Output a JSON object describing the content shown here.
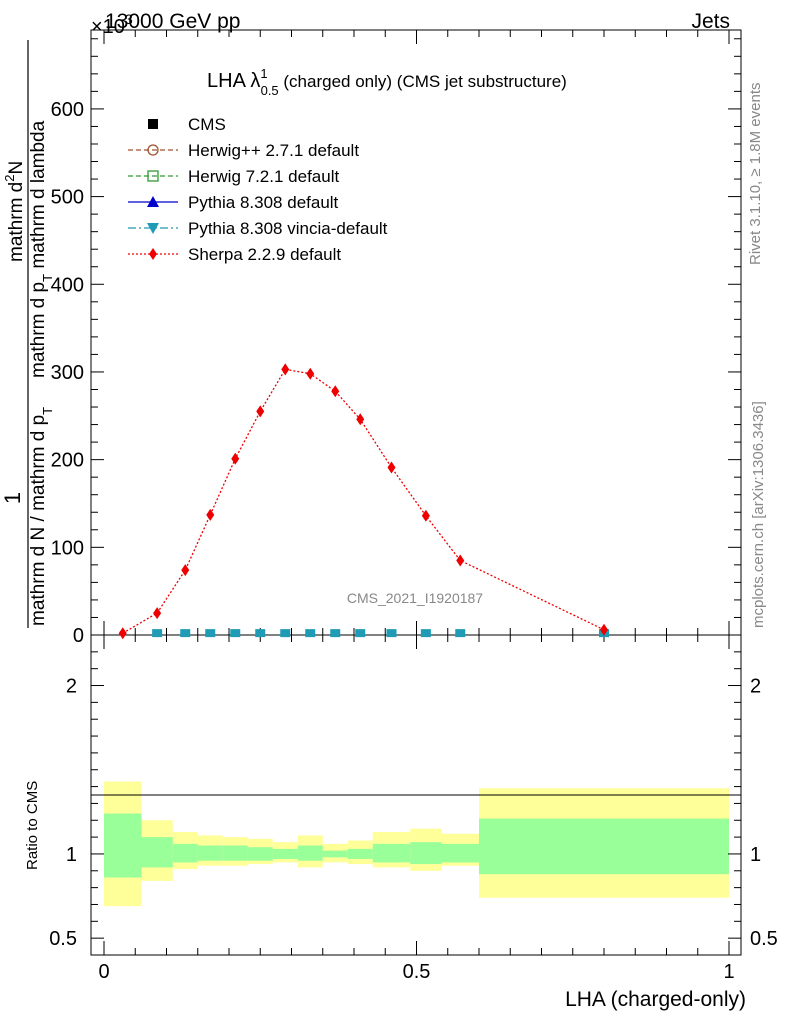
{
  "header": {
    "left": "13000 GeV pp",
    "right": "Jets",
    "exponent_label": "×10",
    "exponent_power": "3"
  },
  "side_labels": {
    "rivet": "Rivet 3.1.10, ≥ 1.8M events",
    "mcplots": "mcplots.cern.ch [arXiv:1306.3436]"
  },
  "watermark": "CMS_2021_I1920187",
  "title": {
    "main": "LHA λ",
    "sup": "1",
    "sub": "0.5",
    "rest": " (charged only) (CMS jet substructure)"
  },
  "y_axis_main": {
    "frac_one": "1",
    "denominator": "mathrm d N / mathrm d p",
    "den_sub": "T",
    "numerator": "mathrm d",
    "num_sup": "2",
    "num_rest": "N",
    "num_line2": "mathrm d p",
    "num_line2_sub": "T",
    "num_line2_rest": " mathrm d lambda"
  },
  "y_axis_ratio": "Ratio to CMS",
  "x_axis_label": "LHA (charged-only)",
  "legend": [
    {
      "label": "CMS",
      "color": "#000000",
      "marker": "square-filled",
      "line": "none"
    },
    {
      "label": "Herwig++ 2.7.1 default",
      "color": "#a0522d",
      "marker": "circle-open",
      "line": "dashed"
    },
    {
      "label": "Herwig 7.2.1 default",
      "color": "#339933",
      "marker": "square-open",
      "line": "dashed"
    },
    {
      "label": "Pythia 8.308 default",
      "color": "#0000cc",
      "marker": "triangle-up",
      "line": "solid"
    },
    {
      "label": "Pythia 8.308 vincia-default",
      "color": "#1f9bb5",
      "marker": "triangle-down",
      "line": "dashdot"
    },
    {
      "label": "Sherpa 2.2.9 default",
      "color": "#ee0000",
      "marker": "diamond",
      "line": "dotted"
    }
  ],
  "chart_data": {
    "type": "line",
    "x_label": "LHA (charged-only)",
    "y_label": "1 / (mathrm d N / mathrm d p_T) · mathrm d^2 N / (mathrm d p_T mathrm d lambda)",
    "y_scale_factor": 1000,
    "xlim": [
      0,
      1
    ],
    "ylim_main": [
      0,
      690
    ],
    "ylim_ratio": [
      0.4,
      2.3
    ],
    "y_ticks_main": [
      0,
      100,
      200,
      300,
      400,
      500,
      600
    ],
    "y_ticks_ratio": [
      0.5,
      1,
      2
    ],
    "x_ticks": [
      0,
      0.5,
      1
    ],
    "bin_edges": [
      0,
      0.06,
      0.11,
      0.15,
      0.19,
      0.23,
      0.27,
      0.31,
      0.35,
      0.39,
      0.43,
      0.49,
      0.54,
      0.6,
      1.0
    ],
    "series": [
      {
        "name": "Sherpa 2.2.9 default",
        "x": [
          0.03,
          0.085,
          0.13,
          0.17,
          0.21,
          0.25,
          0.29,
          0.33,
          0.37,
          0.41,
          0.46,
          0.515,
          0.57,
          0.8
        ],
        "y": [
          2,
          25,
          74,
          137,
          201,
          255,
          303,
          298,
          278,
          246,
          191,
          136,
          85,
          6
        ],
        "yerr": [
          1,
          2,
          3,
          4,
          5,
          5,
          6,
          5,
          5,
          4,
          4,
          3,
          3,
          1
        ]
      },
      {
        "name": "Pythia 8.308 vincia-default",
        "x": [
          0.085,
          0.13,
          0.17,
          0.21,
          0.25,
          0.29,
          0.33,
          0.37,
          0.41,
          0.46,
          0.515,
          0.57,
          0.8
        ],
        "y": [
          1,
          1,
          1,
          1,
          1,
          1,
          1,
          1,
          1,
          1,
          1,
          1,
          1
        ]
      }
    ],
    "ratio_band_inner": [
      {
        "x0": 0,
        "x1": 0.06,
        "lo": 0.86,
        "hi": 1.24
      },
      {
        "x0": 0.06,
        "x1": 0.11,
        "lo": 0.92,
        "hi": 1.1
      },
      {
        "x0": 0.11,
        "x1": 0.15,
        "lo": 0.95,
        "hi": 1.06
      },
      {
        "x0": 0.15,
        "x1": 0.19,
        "lo": 0.96,
        "hi": 1.05
      },
      {
        "x0": 0.19,
        "x1": 0.23,
        "lo": 0.96,
        "hi": 1.05
      },
      {
        "x0": 0.23,
        "x1": 0.27,
        "lo": 0.96,
        "hi": 1.04
      },
      {
        "x0": 0.27,
        "x1": 0.31,
        "lo": 0.97,
        "hi": 1.03
      },
      {
        "x0": 0.31,
        "x1": 0.35,
        "lo": 0.96,
        "hi": 1.05
      },
      {
        "x0": 0.35,
        "x1": 0.39,
        "lo": 0.98,
        "hi": 1.02
      },
      {
        "x0": 0.39,
        "x1": 0.43,
        "lo": 0.97,
        "hi": 1.03
      },
      {
        "x0": 0.43,
        "x1": 0.49,
        "lo": 0.95,
        "hi": 1.06
      },
      {
        "x0": 0.49,
        "x1": 0.54,
        "lo": 0.94,
        "hi": 1.07
      },
      {
        "x0": 0.54,
        "x1": 0.6,
        "lo": 0.95,
        "hi": 1.06
      },
      {
        "x0": 0.6,
        "x1": 1.0,
        "lo": 0.88,
        "hi": 1.21
      }
    ],
    "ratio_band_outer": [
      {
        "x0": 0,
        "x1": 0.06,
        "lo": 0.69,
        "hi": 1.43
      },
      {
        "x0": 0.06,
        "x1": 0.11,
        "lo": 0.84,
        "hi": 1.2
      },
      {
        "x0": 0.11,
        "x1": 0.15,
        "lo": 0.91,
        "hi": 1.13
      },
      {
        "x0": 0.15,
        "x1": 0.19,
        "lo": 0.93,
        "hi": 1.11
      },
      {
        "x0": 0.19,
        "x1": 0.23,
        "lo": 0.93,
        "hi": 1.1
      },
      {
        "x0": 0.23,
        "x1": 0.27,
        "lo": 0.94,
        "hi": 1.09
      },
      {
        "x0": 0.27,
        "x1": 0.31,
        "lo": 0.95,
        "hi": 1.07
      },
      {
        "x0": 0.31,
        "x1": 0.35,
        "lo": 0.92,
        "hi": 1.11
      },
      {
        "x0": 0.35,
        "x1": 0.39,
        "lo": 0.95,
        "hi": 1.06
      },
      {
        "x0": 0.39,
        "x1": 0.43,
        "lo": 0.94,
        "hi": 1.08
      },
      {
        "x0": 0.43,
        "x1": 0.49,
        "lo": 0.92,
        "hi": 1.13
      },
      {
        "x0": 0.49,
        "x1": 0.54,
        "lo": 0.9,
        "hi": 1.15
      },
      {
        "x0": 0.54,
        "x1": 0.6,
        "lo": 0.93,
        "hi": 1.12
      },
      {
        "x0": 0.6,
        "x1": 1.0,
        "lo": 0.74,
        "hi": 1.39
      }
    ],
    "colors": {
      "inner_band": "#99ff99",
      "outer_band": "#ffff99",
      "sherpa": "#ee0000",
      "vincia": "#1f9bb5"
    }
  }
}
